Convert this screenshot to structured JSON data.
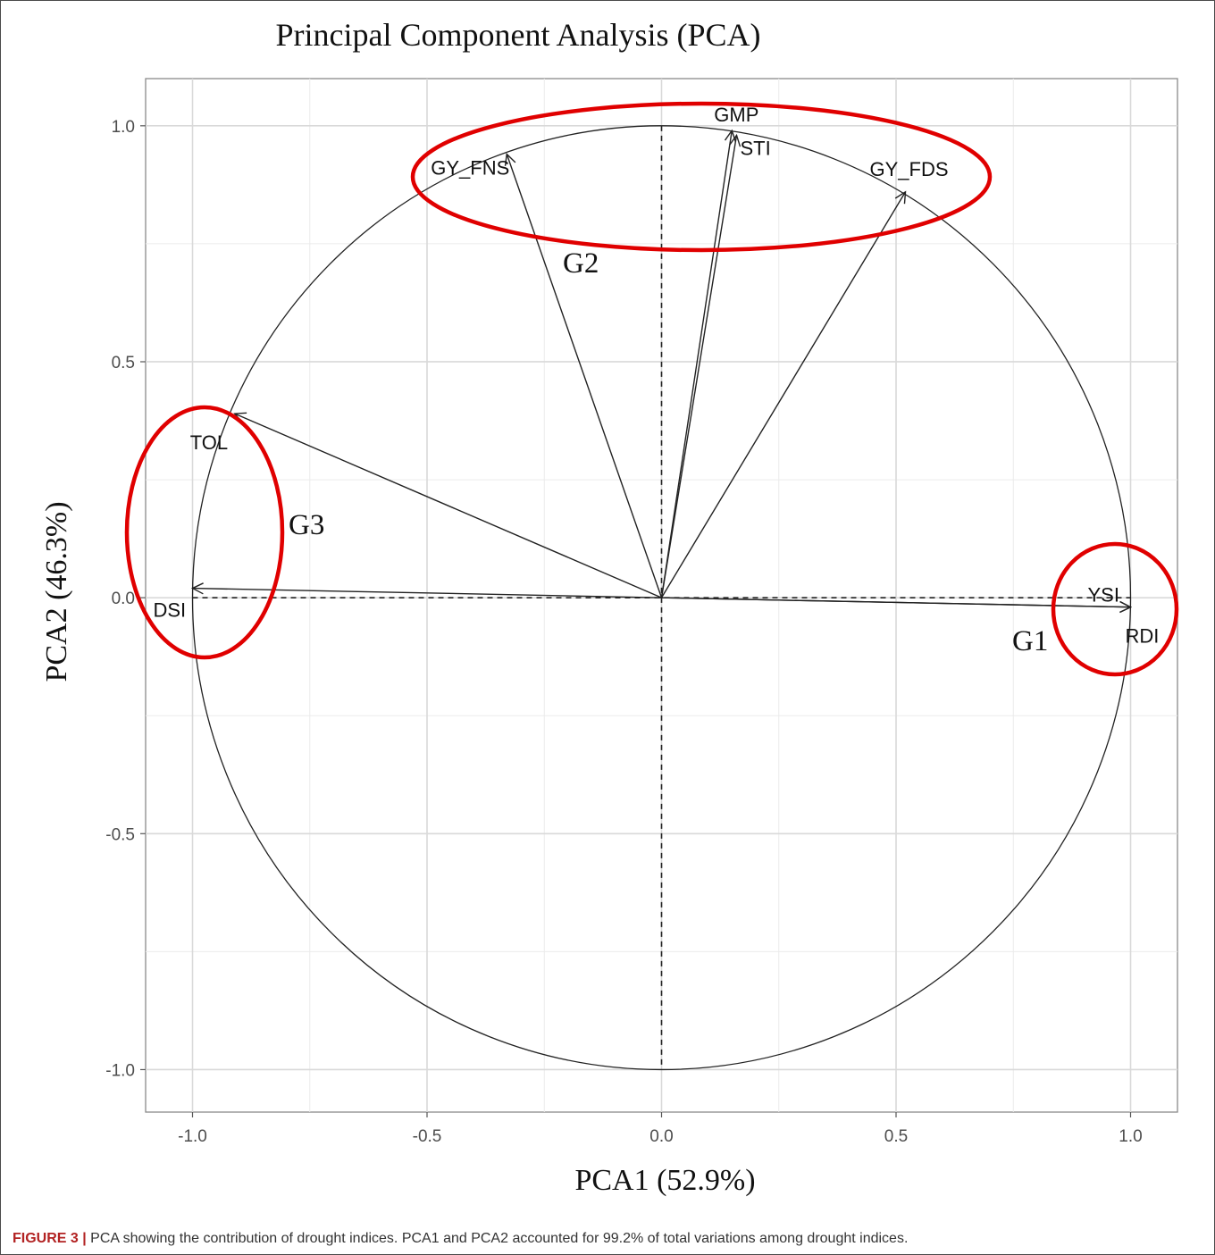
{
  "figure": {
    "caption_label": "FIGURE 3 |",
    "caption_text": " PCA showing the contribution of drought indices. PCA1 and PCA2 accounted for 99.2% of total variations among drought indices."
  },
  "chart_data": {
    "type": "scatter",
    "title": "Principal Component Analysis (PCA)",
    "xlabel": "PCA1 (52.9%)",
    "ylabel": "PCA2 (46.3%)",
    "xlim": [
      -1.1,
      1.1
    ],
    "ylim": [
      -1.09,
      1.1
    ],
    "xticks": [
      -1.0,
      -0.5,
      0.0,
      0.5,
      1.0
    ],
    "yticks": [
      -1.0,
      -0.5,
      0.0,
      0.5,
      1.0
    ],
    "xtick_labels": [
      "-1.0",
      "-0.5",
      "0.0",
      "0.5",
      "1.0"
    ],
    "ytick_labels": [
      "-1.0",
      "-0.5",
      "0.0",
      "0.5",
      "1.0"
    ],
    "grid": true,
    "unit_circle": true,
    "variables": [
      {
        "name": "GMP",
        "x": 0.15,
        "y": 0.99
      },
      {
        "name": "STI",
        "x": 0.16,
        "y": 0.98
      },
      {
        "name": "GY_FNS",
        "x": -0.33,
        "y": 0.94
      },
      {
        "name": "GY_FDS",
        "x": 0.52,
        "y": 0.86
      },
      {
        "name": "TOL",
        "x": -0.91,
        "y": 0.39
      },
      {
        "name": "DSI",
        "x": -1.0,
        "y": 0.02
      },
      {
        "name": "YSI",
        "x": 1.0,
        "y": -0.02
      },
      {
        "name": "RDI",
        "x": 1.0,
        "y": -0.02
      }
    ],
    "groups": [
      {
        "name": "G1",
        "members": [
          "YSI",
          "RDI"
        ]
      },
      {
        "name": "G2",
        "members": [
          "GY_FNS",
          "GMP",
          "STI",
          "GY_FDS"
        ]
      },
      {
        "name": "G3",
        "members": [
          "TOL",
          "DSI"
        ]
      }
    ],
    "group_color": "#e00000"
  }
}
